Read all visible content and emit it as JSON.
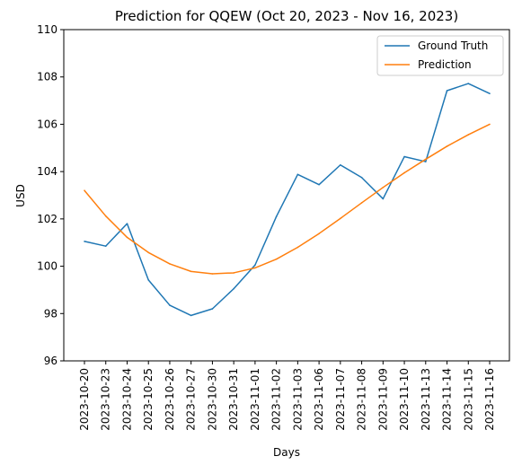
{
  "chart_data": {
    "type": "line",
    "title": "Prediction for QQEW (Oct 20, 2023 - Nov 16, 2023)",
    "xlabel": "Days",
    "ylabel": "USD",
    "ylim": [
      96,
      110
    ],
    "yticks": [
      "96",
      "98",
      "100",
      "102",
      "104",
      "106",
      "108",
      "110"
    ],
    "categories": [
      "2023-10-20",
      "2023-10-23",
      "2023-10-24",
      "2023-10-25",
      "2023-10-26",
      "2023-10-27",
      "2023-10-30",
      "2023-10-31",
      "2023-11-01",
      "2023-11-02",
      "2023-11-03",
      "2023-11-06",
      "2023-11-07",
      "2023-11-08",
      "2023-11-09",
      "2023-11-10",
      "2023-11-13",
      "2023-11-14",
      "2023-11-15",
      "2023-11-16"
    ],
    "series": [
      {
        "name": "Ground Truth",
        "color": "#1f77b4",
        "values": [
          101.05,
          100.85,
          101.8,
          99.42,
          98.35,
          97.92,
          98.2,
          99.05,
          100.05,
          102.1,
          103.88,
          103.45,
          104.28,
          103.75,
          102.85,
          104.63,
          104.42,
          107.42,
          107.72,
          107.3
        ]
      },
      {
        "name": "Prediction",
        "color": "#ff7f0e",
        "values": [
          103.2,
          102.12,
          101.22,
          100.58,
          100.1,
          99.78,
          99.68,
          99.72,
          99.93,
          100.3,
          100.8,
          101.38,
          102.02,
          102.68,
          103.33,
          103.95,
          104.52,
          105.07,
          105.56,
          106.0
        ]
      }
    ],
    "legend": "top-right",
    "grid": false
  }
}
